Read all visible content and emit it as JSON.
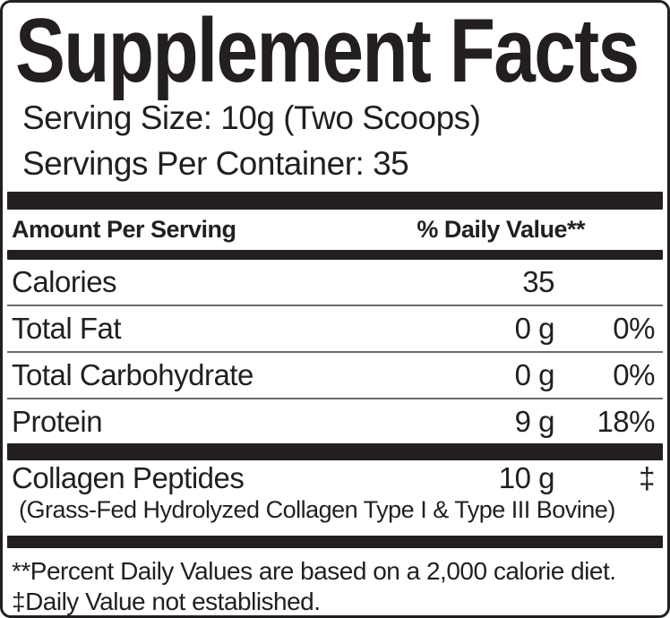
{
  "label": {
    "title": "Supplement Facts",
    "serving_size": "Serving Size: 10g (Two Scoops)",
    "servings_per_container": "Servings Per Container: 35",
    "header": {
      "amount_per_serving": "Amount Per Serving",
      "daily_value": "% Daily Value**"
    },
    "rows": [
      {
        "name": "Calories",
        "amount": "35",
        "dv": ""
      },
      {
        "name": "Total Fat",
        "amount": "0 g",
        "dv": "0%"
      },
      {
        "name": "Total Carbohydrate",
        "amount": "0 g",
        "dv": "0%"
      },
      {
        "name": "Protein",
        "amount": "9 g",
        "dv": "18%"
      }
    ],
    "ingredient_row": {
      "name": "Collagen Peptides",
      "amount": "10 g",
      "dv": "‡",
      "description": "(Grass-Fed Hydrolyzed Collagen Type I & Type III Bovine)"
    },
    "footnotes": [
      "**Percent Daily Values are based on a 2,000 calorie diet.",
      "‡Daily Value not established."
    ],
    "colors": {
      "text": "#231f20",
      "bar": "#231f20",
      "divider": "#6b6b6b",
      "background": "#ffffff"
    }
  }
}
